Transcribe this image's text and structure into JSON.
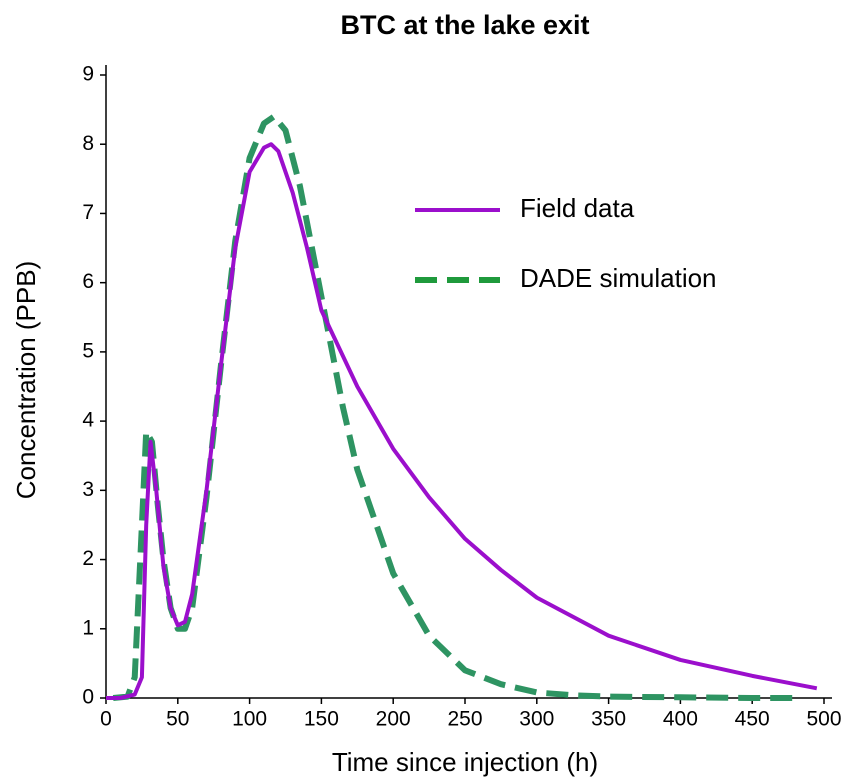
{
  "chart_data": {
    "type": "line",
    "title": "BTC at the lake exit",
    "x_label": "Time since injection (h)",
    "y_label": "Concentration (PPB)",
    "xlim": [
      0,
      500
    ],
    "xticks": [
      0,
      50,
      100,
      150,
      200,
      250,
      300,
      350,
      400,
      450,
      500
    ],
    "ylim": [
      0,
      9
    ],
    "yticks": [
      0,
      1,
      2,
      3,
      4,
      5,
      6,
      7,
      8,
      9
    ],
    "series": [
      {
        "name": "Field data",
        "color": "#9b0fcc",
        "style": "solid",
        "x": [
          0,
          10,
          20,
          25,
          28,
          31,
          35,
          40,
          45,
          50,
          55,
          60,
          70,
          80,
          90,
          100,
          110,
          115,
          120,
          130,
          140,
          150,
          175,
          200,
          225,
          250,
          275,
          300,
          350,
          400,
          450,
          495
        ],
        "values": [
          0,
          0,
          0.05,
          0.3,
          2.5,
          3.7,
          3.0,
          1.9,
          1.3,
          1.05,
          1.1,
          1.5,
          3.0,
          4.8,
          6.5,
          7.6,
          7.95,
          8.0,
          7.9,
          7.3,
          6.5,
          5.6,
          4.5,
          3.6,
          2.9,
          2.3,
          1.85,
          1.45,
          0.9,
          0.55,
          0.32,
          0.14
        ]
      },
      {
        "name": "DADE simulation",
        "color": "#2e9462",
        "style": "dashed",
        "x": [
          5,
          15,
          20,
          25,
          28,
          32,
          36,
          40,
          45,
          50,
          55,
          60,
          70,
          80,
          90,
          100,
          110,
          117,
          125,
          135,
          150,
          165,
          175,
          200,
          225,
          250,
          275,
          300,
          325,
          350,
          400,
          450,
          480
        ],
        "values": [
          0,
          0.02,
          0.3,
          2.5,
          3.85,
          3.7,
          2.8,
          2.0,
          1.3,
          1.0,
          1.0,
          1.3,
          2.9,
          4.8,
          6.6,
          7.8,
          8.3,
          8.4,
          8.2,
          7.4,
          5.8,
          4.2,
          3.3,
          1.8,
          0.9,
          0.4,
          0.2,
          0.08,
          0.04,
          0.02,
          0.01,
          0,
          0
        ]
      }
    ]
  }
}
